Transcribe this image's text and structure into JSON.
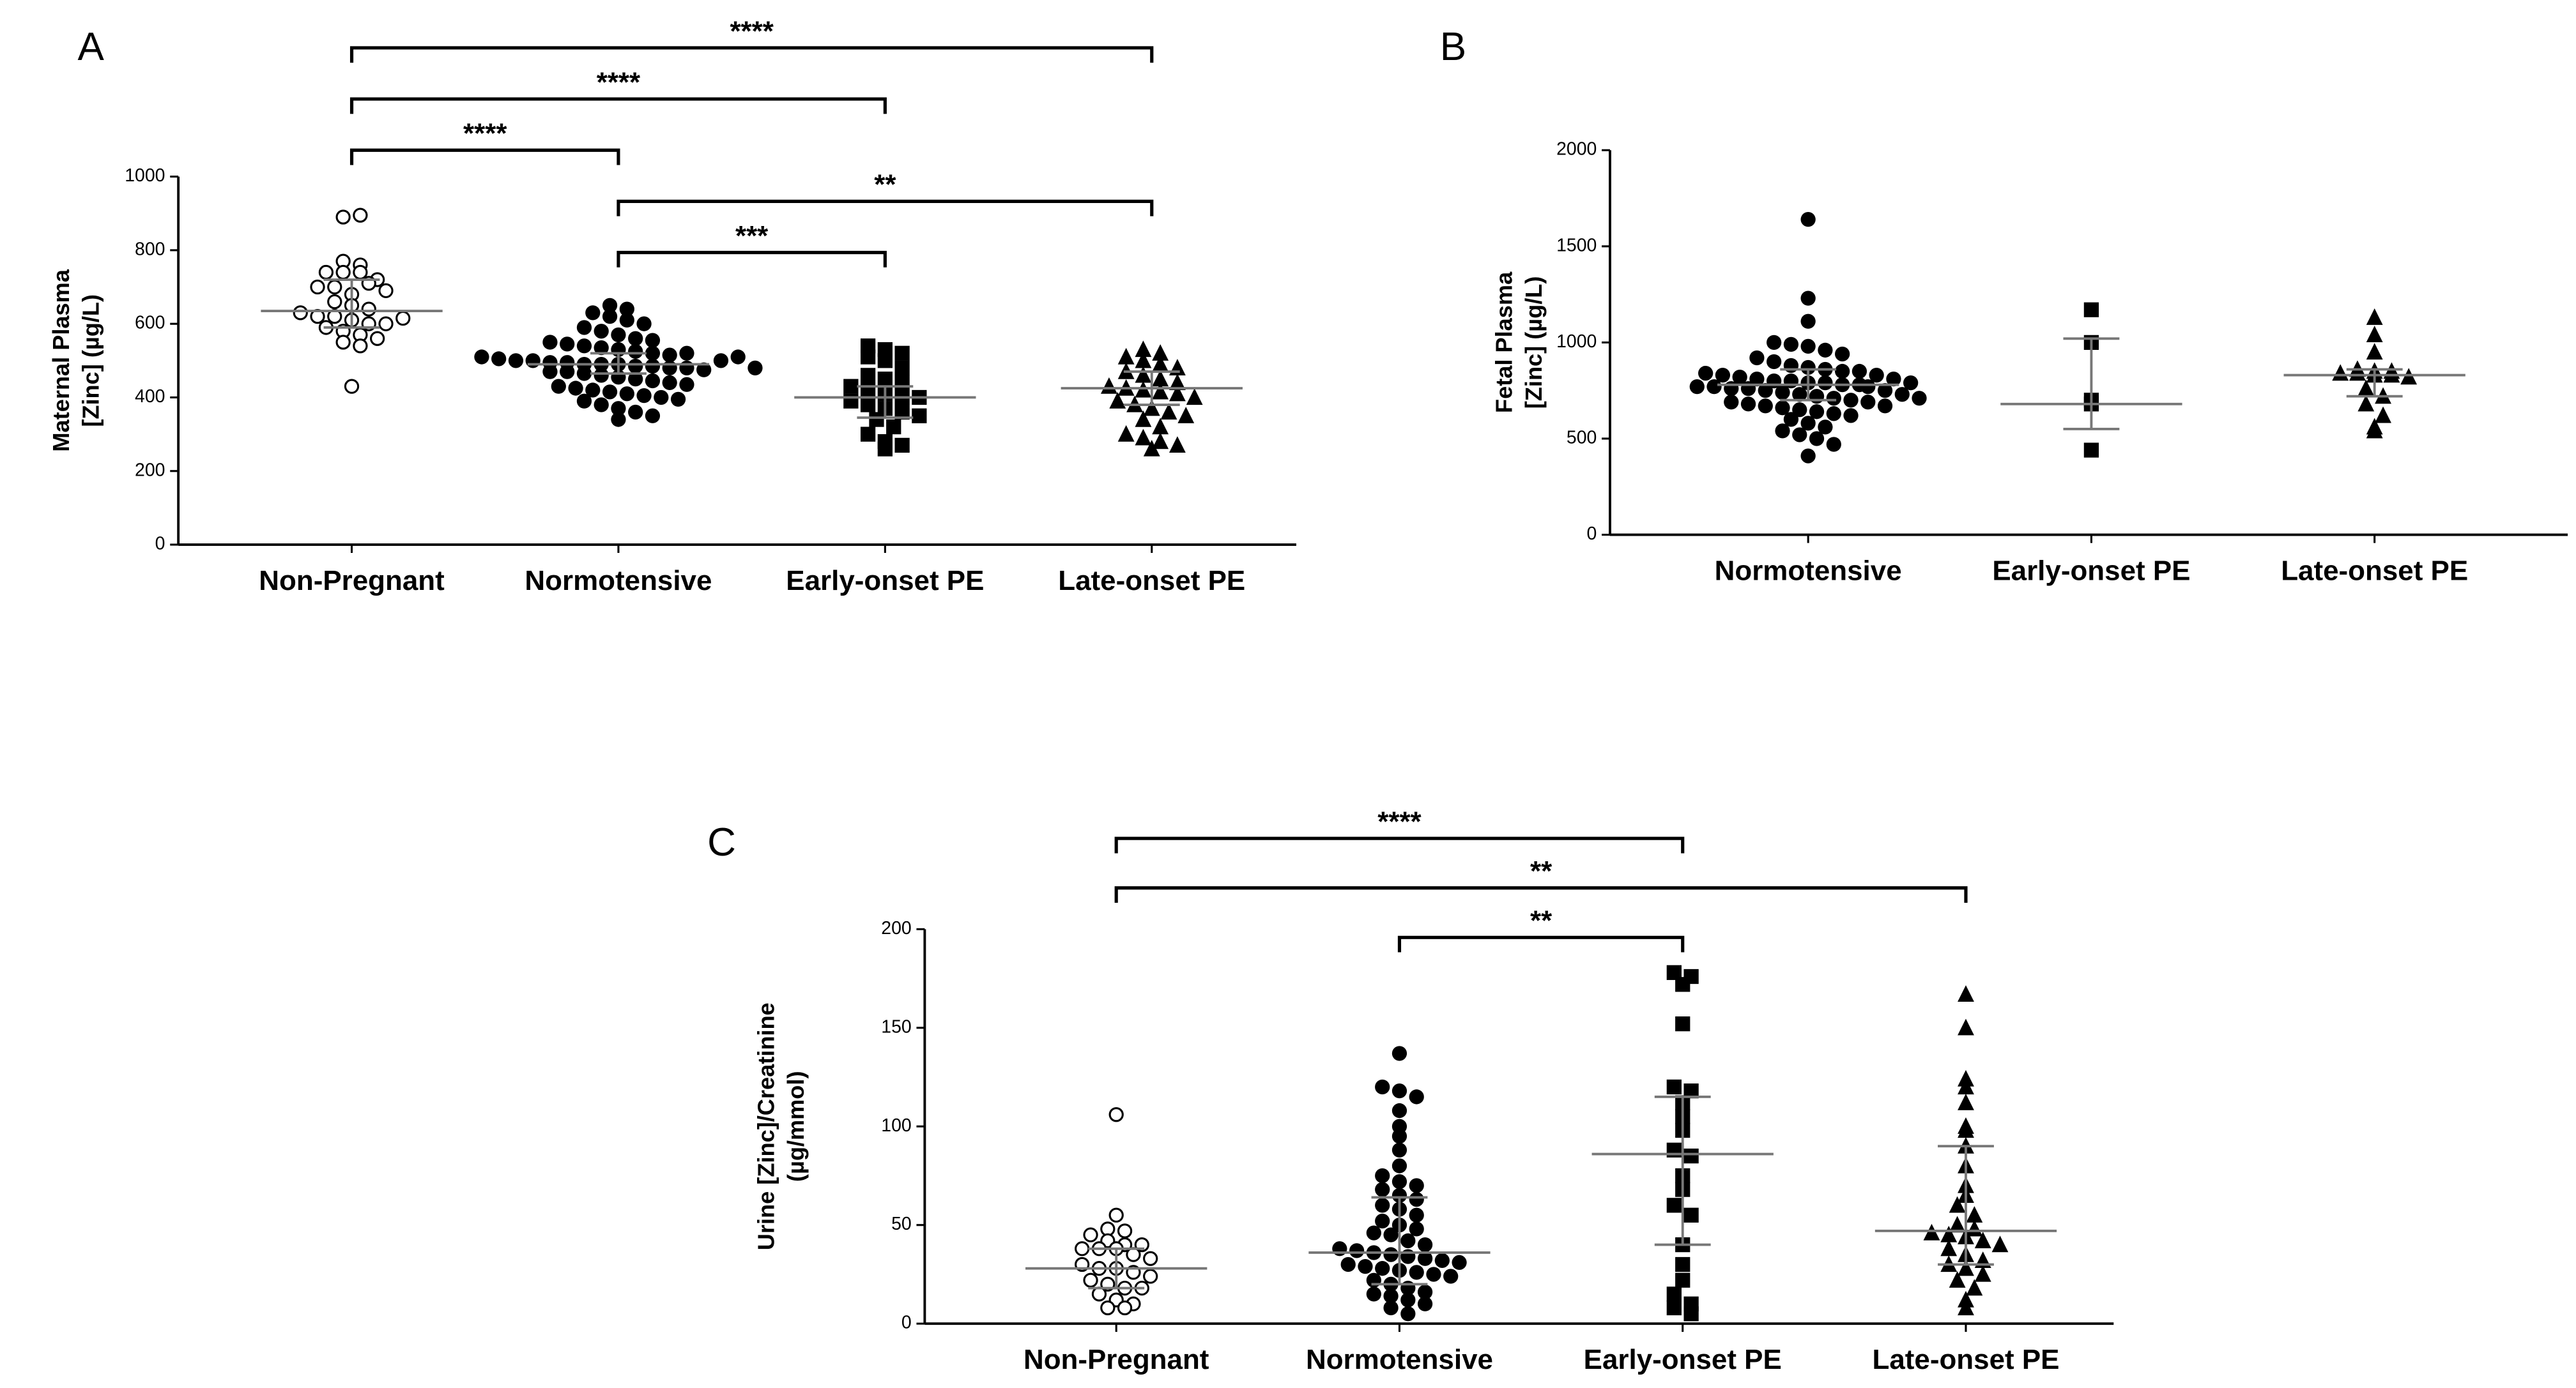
{
  "chart_data": [
    {
      "type": "dotplot",
      "label": "A",
      "ylabel": [
        "Maternal Plasma",
        "[Zinc] (µg/L)"
      ],
      "categories": [
        "Non-Pregnant",
        "Normotensive",
        "Early-onset PE",
        "Late-onset PE"
      ],
      "markers": [
        "open-circle",
        "circle",
        "square",
        "triangle"
      ],
      "color": "#000000",
      "ylim": [
        0,
        1000
      ],
      "yticks": [
        0,
        200,
        400,
        600,
        800,
        1000
      ],
      "values": [
        [
          890,
          895,
          430,
          740,
          740,
          740,
          720,
          700,
          700,
          680,
          660,
          650,
          640,
          630,
          620,
          620,
          610,
          600,
          600,
          590,
          580,
          570,
          560,
          550,
          540,
          710,
          690,
          770,
          760,
          615
        ],
        [
          650,
          640,
          630,
          620,
          610,
          600,
          590,
          580,
          570,
          560,
          555,
          550,
          545,
          540,
          535,
          530,
          525,
          520,
          515,
          510,
          505,
          500,
          500,
          495,
          495,
          490,
          490,
          490,
          485,
          485,
          480,
          480,
          475,
          470,
          470,
          465,
          460,
          455,
          450,
          445,
          440,
          435,
          430,
          425,
          420,
          415,
          410,
          405,
          400,
          395,
          390,
          380,
          370,
          360,
          350,
          340,
          500,
          510,
          520,
          480
        ],
        [
          540,
          530,
          520,
          510,
          500,
          480,
          460,
          450,
          440,
          430,
          420,
          410,
          400,
          400,
          390,
          380,
          370,
          360,
          350,
          340,
          320,
          300,
          280,
          270,
          260
        ],
        [
          530,
          520,
          510,
          500,
          490,
          480,
          470,
          460,
          450,
          440,
          430,
          425,
          420,
          415,
          410,
          400,
          390,
          380,
          370,
          360,
          350,
          340,
          320,
          300,
          290,
          280,
          270,
          260
        ]
      ],
      "medians": [
        635,
        490,
        400,
        425
      ],
      "q1": [
        590,
        465,
        345,
        380
      ],
      "q3": [
        720,
        520,
        430,
        470
      ],
      "brackets": [
        {
          "from": 1,
          "to": 2,
          "label": "***"
        },
        {
          "from": 1,
          "to": 3,
          "label": "**"
        },
        {
          "from": 0,
          "to": 1,
          "label": "****"
        },
        {
          "from": 0,
          "to": 2,
          "label": "****"
        },
        {
          "from": 0,
          "to": 3,
          "label": "****"
        }
      ]
    },
    {
      "type": "dotplot",
      "label": "B",
      "ylabel": [
        "Fetal Plasma",
        "[Zinc] (µg/L)"
      ],
      "categories": [
        "Normotensive",
        "Early-onset PE",
        "Late-onset PE"
      ],
      "markers": [
        "circle",
        "square",
        "triangle"
      ],
      "color": "#000000",
      "ylim": [
        0,
        2000
      ],
      "yticks": [
        0,
        500,
        1000,
        1500,
        2000
      ],
      "values": [
        [
          1640,
          1230,
          1110,
          1000,
          990,
          980,
          960,
          940,
          920,
          900,
          880,
          870,
          860,
          850,
          840,
          830,
          820,
          810,
          800,
          800,
          790,
          790,
          780,
          780,
          770,
          770,
          760,
          760,
          750,
          740,
          730,
          720,
          710,
          700,
          690,
          680,
          670,
          660,
          650,
          640,
          630,
          620,
          600,
          580,
          560,
          540,
          520,
          500,
          470,
          410,
          850,
          830,
          810,
          790,
          770,
          750,
          730,
          710,
          690,
          670
        ],
        [
          1170,
          1000,
          700,
          680,
          440
        ],
        [
          1130,
          1040,
          950,
          860,
          850,
          850,
          840,
          840,
          830,
          830,
          820,
          760,
          720,
          680,
          620,
          560,
          540
        ]
      ],
      "medians": [
        780,
        680,
        830
      ],
      "q1": [
        700,
        550,
        720
      ],
      "q3": [
        860,
        1020,
        860
      ],
      "brackets": []
    },
    {
      "type": "dotplot",
      "label": "C",
      "ylabel": [
        "Urine [Zinc]/Creatinine",
        "(µg/mmol)"
      ],
      "categories": [
        "Non-Pregnant",
        "Normotensive",
        "Early-onset PE",
        "Late-onset PE"
      ],
      "markers": [
        "open-circle",
        "circle",
        "square",
        "triangle"
      ],
      "color": "#000000",
      "ylim": [
        0,
        200
      ],
      "yticks": [
        0,
        50,
        100,
        150,
        200
      ],
      "values": [
        [
          106,
          55,
          48,
          47,
          45,
          42,
          40,
          38,
          38,
          38,
          35,
          33,
          30,
          28,
          28,
          26,
          24,
          22,
          20,
          18,
          18,
          15,
          12,
          10,
          8,
          8,
          40
        ],
        [
          137,
          120,
          118,
          115,
          108,
          100,
          95,
          88,
          80,
          75,
          72,
          70,
          68,
          65,
          63,
          60,
          58,
          55,
          52,
          50,
          48,
          46,
          45,
          42,
          40,
          38,
          37,
          36,
          35,
          34,
          33,
          32,
          31,
          30,
          29,
          28,
          27,
          26,
          25,
          24,
          22,
          20,
          18,
          16,
          15,
          14,
          12,
          10,
          8,
          5
        ],
        [
          178,
          176,
          172,
          152,
          120,
          118,
          112,
          105,
          98,
          88,
          85,
          75,
          68,
          60,
          55,
          40,
          30,
          22,
          15,
          10,
          8,
          5
        ],
        [
          167,
          150,
          124,
          120,
          112,
          100,
          98,
          90,
          80,
          70,
          65,
          60,
          55,
          50,
          48,
          46,
          45,
          44,
          42,
          40,
          38,
          35,
          32,
          30,
          28,
          25,
          22,
          18,
          12,
          8
        ]
      ],
      "medians": [
        28,
        36,
        86,
        47
      ],
      "q1": [
        18,
        20,
        40,
        30
      ],
      "q3": [
        38,
        64,
        115,
        90
      ],
      "brackets": [
        {
          "from": 1,
          "to": 2,
          "label": "**"
        },
        {
          "from": 0,
          "to": 3,
          "label": "**"
        },
        {
          "from": 0,
          "to": 2,
          "label": "****"
        }
      ]
    }
  ]
}
